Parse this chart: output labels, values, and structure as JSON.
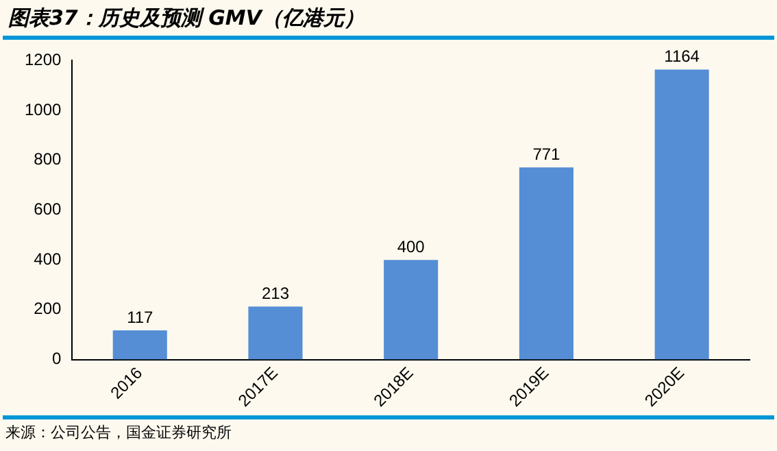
{
  "chart_data": {
    "type": "bar",
    "title": "图表37：历史及预测 GMV（亿港元）",
    "categories": [
      "2016",
      "2017E",
      "2018E",
      "2019E",
      "2020E"
    ],
    "values": [
      117,
      213,
      400,
      771,
      1164
    ],
    "color": "#558ed5",
    "ylim": [
      0,
      1200
    ],
    "yticks": [
      0,
      200,
      400,
      600,
      800,
      1000,
      1200
    ],
    "grid": false,
    "data_labels": true,
    "annotations": [
      "来源：公司公告，国金证券研究所"
    ]
  }
}
